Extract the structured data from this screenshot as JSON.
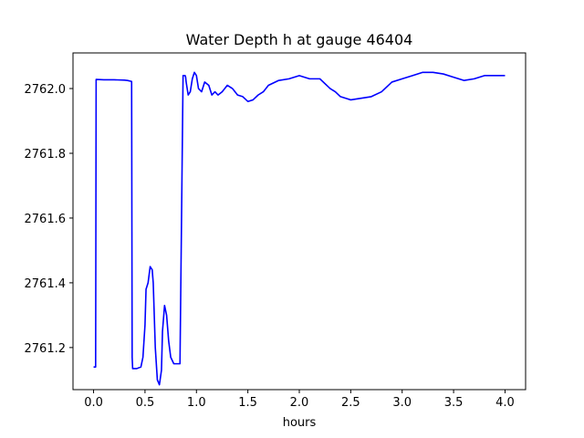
{
  "chart_data": {
    "type": "line",
    "title": "Water Depth h at gauge 46404",
    "xlabel": "hours",
    "ylabel": "",
    "xlim": [
      -0.2,
      4.2
    ],
    "ylim": [
      2761.07,
      2762.11
    ],
    "xticks": [
      0.0,
      0.5,
      1.0,
      1.5,
      2.0,
      2.5,
      3.0,
      3.5,
      4.0
    ],
    "xtick_labels": [
      "0.0",
      "0.5",
      "1.0",
      "1.5",
      "2.0",
      "2.5",
      "3.0",
      "3.5",
      "4.0"
    ],
    "yticks": [
      2761.2,
      2761.4,
      2761.6,
      2761.8,
      2762.0
    ],
    "ytick_labels": [
      "2761.2",
      "2761.4",
      "2761.6",
      "2761.8",
      "2762.0"
    ],
    "grid": false,
    "series": [
      {
        "color": "#0000ff",
        "x": [
          0.0,
          0.02,
          0.025,
          0.03,
          0.1,
          0.2,
          0.3,
          0.33,
          0.37,
          0.375,
          0.38,
          0.42,
          0.46,
          0.48,
          0.5,
          0.51,
          0.53,
          0.55,
          0.57,
          0.58,
          0.59,
          0.6,
          0.62,
          0.64,
          0.66,
          0.67,
          0.69,
          0.71,
          0.73,
          0.75,
          0.78,
          0.81,
          0.84,
          0.87,
          0.89,
          0.895,
          0.9,
          0.92,
          0.94,
          0.96,
          0.98,
          1.0,
          1.02,
          1.05,
          1.08,
          1.12,
          1.15,
          1.18,
          1.21,
          1.25,
          1.3,
          1.35,
          1.4,
          1.45,
          1.5,
          1.55,
          1.6,
          1.65,
          1.7,
          1.8,
          1.9,
          2.0,
          2.1,
          2.2,
          2.3,
          2.35,
          2.4,
          2.5,
          2.6,
          2.7,
          2.8,
          2.9,
          3.0,
          3.1,
          3.2,
          3.3,
          3.4,
          3.5,
          3.6,
          3.7,
          3.8,
          3.9,
          4.0
        ],
        "values": [
          2761.14,
          2761.14,
          2762.028,
          2762.028,
          2762.027,
          2762.027,
          2762.026,
          2762.025,
          2762.022,
          2761.17,
          2761.135,
          2761.135,
          2761.14,
          2761.17,
          2761.27,
          2761.38,
          2761.4,
          2761.45,
          2761.44,
          2761.4,
          2761.3,
          2761.2,
          2761.1,
          2761.085,
          2761.13,
          2761.25,
          2761.33,
          2761.3,
          2761.22,
          2761.17,
          2761.15,
          2761.15,
          2761.15,
          2762.04,
          2762.04,
          2762.035,
          2762.02,
          2761.98,
          2761.99,
          2762.03,
          2762.05,
          2762.04,
          2762.0,
          2761.99,
          2762.02,
          2762.01,
          2761.98,
          2761.99,
          2761.98,
          2761.99,
          2762.01,
          2762.0,
          2761.98,
          2761.975,
          2761.96,
          2761.965,
          2761.98,
          2761.99,
          2762.01,
          2762.025,
          2762.03,
          2762.04,
          2762.03,
          2762.03,
          2762.0,
          2761.99,
          2761.975,
          2761.965,
          2761.97,
          2761.975,
          2761.99,
          2762.02,
          2762.03,
          2762.04,
          2762.05,
          2762.05,
          2762.045,
          2762.035,
          2762.025,
          2762.03,
          2762.04,
          2762.04,
          2762.04
        ]
      }
    ]
  }
}
